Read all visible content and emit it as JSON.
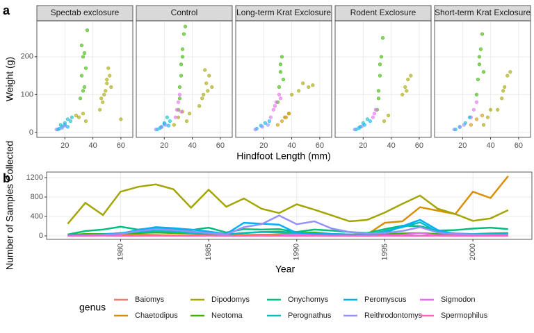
{
  "chart_data": [
    {
      "type": "scatter",
      "label": "a",
      "x_label": "Hindfoot Length (mm)",
      "y_label": "Weight (g)",
      "xlim": [
        0,
        68.5
      ],
      "ylim": [
        -13,
        295
      ],
      "xticks": [
        20,
        40,
        60
      ],
      "yticks": [
        0,
        100,
        200
      ],
      "grid": true,
      "facets": [
        {
          "title": "Spectab exclosure",
          "series": [
            {
              "color": "#A3A500",
              "x": [
                45,
                48,
                50,
                52,
                49,
                51,
                47,
                53,
                30,
                33,
                35,
                28,
                60,
                50,
                46
              ],
              "y": [
                60,
                100,
                130,
                150,
                110,
                170,
                80,
                120,
                40,
                50,
                30,
                45,
                35,
                140,
                90
              ]
            },
            {
              "color": "#39B600",
              "x": [
                31,
                32,
                33,
                34,
                32,
                35,
                36,
                33,
                34
              ],
              "y": [
                90,
                150,
                200,
                120,
                230,
                170,
                270,
                110,
                210
              ]
            },
            {
              "color": "#00BFC4",
              "x": [
                15,
                18,
                20,
                22,
                25,
                17,
                24
              ],
              "y": [
                8,
                15,
                25,
                35,
                40,
                20,
                30
              ]
            },
            {
              "color": "#00B0F6",
              "x": [
                16,
                20,
                22
              ],
              "y": [
                10,
                20,
                15
              ]
            },
            {
              "color": "#9590FF",
              "x": [
                18,
                20,
                14
              ],
              "y": [
                12,
                18,
                8
              ]
            }
          ]
        },
        {
          "title": "Control",
          "series": [
            {
              "color": "#A3A500",
              "x": [
                27,
                30,
                33,
                36,
                38,
                45,
                48,
                50,
                52,
                54,
                49,
                51,
                47
              ],
              "y": [
                20,
                40,
                55,
                30,
                50,
                70,
                100,
                130,
                150,
                120,
                165,
                110,
                90
              ]
            },
            {
              "color": "#39B600",
              "x": [
                30,
                31,
                32,
                33,
                34,
                35,
                32,
                31,
                33
              ],
              "y": [
                60,
                120,
                180,
                220,
                260,
                280,
                150,
                90,
                200
              ]
            },
            {
              "color": "#E76BF3",
              "x": [
                28,
                29,
                30,
                31,
                32
              ],
              "y": [
                40,
                60,
                80,
                100,
                55
              ]
            },
            {
              "color": "#00BFC4",
              "x": [
                15,
                18,
                20,
                22,
                24
              ],
              "y": [
                8,
                15,
                25,
                40,
                30
              ]
            },
            {
              "color": "#00B0F6",
              "x": [
                17,
                20,
                23
              ],
              "y": [
                12,
                22,
                18
              ]
            },
            {
              "color": "#9590FF",
              "x": [
                14,
                18,
                21
              ],
              "y": [
                8,
                14,
                20
              ]
            }
          ]
        },
        {
          "title": "Long-term Krat Exclosure",
          "series": [
            {
              "color": "#39B600",
              "x": [
                30,
                31,
                32,
                33,
                34,
                32
              ],
              "y": [
                80,
                120,
                160,
                200,
                140,
                180
              ]
            },
            {
              "color": "#E76BF3",
              "x": [
                25,
                27,
                29,
                31,
                32,
                28
              ],
              "y": [
                40,
                60,
                80,
                100,
                90,
                70
              ]
            },
            {
              "color": "#A3A500",
              "x": [
                40,
                45,
                48,
                52,
                55,
                35,
                38
              ],
              "y": [
                100,
                110,
                130,
                120,
                125,
                40,
                50
              ]
            },
            {
              "color": "#D89000",
              "x": [
                30,
                33,
                36,
                38
              ],
              "y": [
                20,
                30,
                40,
                50
              ]
            },
            {
              "color": "#00B0F6",
              "x": [
                15,
                18,
                21,
                24
              ],
              "y": [
                10,
                18,
                25,
                30
              ]
            },
            {
              "color": "#9590FF",
              "x": [
                14,
                19,
                23
              ],
              "y": [
                8,
                15,
                20
              ]
            }
          ]
        },
        {
          "title": "Rodent Exclosure",
          "series": [
            {
              "color": "#39B600",
              "x": [
                30,
                31,
                32,
                33,
                34,
                32,
                31
              ],
              "y": [
                60,
                110,
                150,
                200,
                250,
                180,
                90
              ]
            },
            {
              "color": "#A3A500",
              "x": [
                48,
                50,
                52,
                54,
                51,
                35,
                38
              ],
              "y": [
                100,
                120,
                140,
                150,
                110,
                30,
                45
              ]
            },
            {
              "color": "#E76BF3",
              "x": [
                27,
                28,
                29
              ],
              "y": [
                40,
                50,
                60
              ]
            },
            {
              "color": "#00BFC4",
              "x": [
                15,
                18,
                20,
                23
              ],
              "y": [
                8,
                15,
                25,
                35
              ]
            },
            {
              "color": "#00B0F6",
              "x": [
                17,
                21,
                25
              ],
              "y": [
                12,
                20,
                30
              ]
            },
            {
              "color": "#9590FF",
              "x": [
                14,
                19
              ],
              "y": [
                8,
                16
              ]
            }
          ]
        },
        {
          "title": "Short-term Krat Exclosure",
          "series": [
            {
              "color": "#39B600",
              "x": [
                30,
                31,
                32,
                33,
                34,
                35,
                32
              ],
              "y": [
                100,
                140,
                180,
                220,
                260,
                160,
                200
              ]
            },
            {
              "color": "#A3A500",
              "x": [
                45,
                48,
                50,
                52,
                54,
                49,
                35,
                38,
                40
              ],
              "y": [
                60,
                90,
                120,
                150,
                160,
                110,
                20,
                40,
                60
              ]
            },
            {
              "color": "#D89000",
              "x": [
                26,
                30,
                34
              ],
              "y": [
                20,
                35,
                45
              ]
            },
            {
              "color": "#E76BF3",
              "x": [
                26,
                28,
                30
              ],
              "y": [
                40,
                60,
                80
              ]
            },
            {
              "color": "#00BFC4",
              "x": [
                15,
                18,
                22,
                25
              ],
              "y": [
                8,
                15,
                25,
                40
              ]
            },
            {
              "color": "#9590FF",
              "x": [
                14,
                18,
                21
              ],
              "y": [
                8,
                14,
                20
              ]
            }
          ]
        }
      ]
    },
    {
      "type": "line",
      "label": "b",
      "x_label": "Year",
      "y_label": "Number of Samples Collected",
      "x": [
        1977,
        1978,
        1979,
        1980,
        1981,
        1982,
        1983,
        1984,
        1985,
        1986,
        1987,
        1988,
        1989,
        1990,
        1991,
        1992,
        1993,
        1994,
        1995,
        1996,
        1997,
        1998,
        1999,
        2000,
        2001,
        2002
      ],
      "xlim": [
        1975.8,
        2003.35
      ],
      "ylim": [
        -71,
        1314
      ],
      "xticks": [
        1980,
        1985,
        1990,
        1995,
        2000
      ],
      "yticks": [
        0,
        400,
        800,
        1200
      ],
      "grid": true,
      "legend_title": "genus",
      "legend": "bottom",
      "series": [
        {
          "name": "Baiomys",
          "color": "#F8766D",
          "values": [
            null,
            null,
            null,
            null,
            null,
            null,
            null,
            null,
            null,
            null,
            null,
            null,
            5,
            10,
            3,
            null,
            null,
            null,
            null,
            null,
            null,
            null,
            null,
            null,
            null,
            null
          ]
        },
        {
          "name": "Chaetodipus",
          "color": "#D89000",
          "values": [
            5,
            20,
            30,
            30,
            25,
            20,
            10,
            10,
            15,
            10,
            20,
            25,
            30,
            40,
            30,
            20,
            10,
            30,
            270,
            300,
            590,
            520,
            450,
            910,
            780,
            1230
          ]
        },
        {
          "name": "Dipodomys",
          "color": "#A3A500",
          "values": [
            250,
            680,
            430,
            910,
            1010,
            1060,
            960,
            580,
            950,
            600,
            770,
            560,
            470,
            650,
            540,
            420,
            300,
            330,
            480,
            660,
            830,
            560,
            450,
            310,
            360,
            530
          ]
        },
        {
          "name": "Neotoma",
          "color": "#39B600",
          "values": [
            20,
            40,
            40,
            50,
            60,
            70,
            60,
            50,
            40,
            30,
            60,
            80,
            90,
            60,
            70,
            40,
            30,
            30,
            40,
            50,
            60,
            40,
            30,
            40,
            50,
            60
          ]
        },
        {
          "name": "Onychomys",
          "color": "#00BF7D",
          "values": [
            30,
            100,
            130,
            190,
            130,
            170,
            150,
            120,
            170,
            70,
            140,
            130,
            140,
            80,
            130,
            110,
            80,
            60,
            140,
            210,
            200,
            110,
            120,
            150,
            170,
            140
          ]
        },
        {
          "name": "Perognathus",
          "color": "#00BFC4",
          "values": [
            10,
            15,
            30,
            60,
            80,
            100,
            90,
            60,
            50,
            30,
            60,
            80,
            70,
            60,
            40,
            30,
            20,
            20,
            100,
            180,
            280,
            80,
            50,
            40,
            40,
            50
          ]
        },
        {
          "name": "Peromyscus",
          "color": "#00B0F6",
          "values": [
            10,
            20,
            30,
            50,
            120,
            180,
            160,
            130,
            90,
            40,
            270,
            250,
            230,
            60,
            50,
            40,
            30,
            20,
            60,
            200,
            330,
            120,
            40,
            30,
            20,
            30
          ]
        },
        {
          "name": "Reithrodontomys",
          "color": "#9590FF",
          "values": [
            5,
            10,
            20,
            40,
            100,
            140,
            120,
            90,
            60,
            30,
            180,
            240,
            420,
            240,
            300,
            150,
            80,
            50,
            60,
            100,
            180,
            70,
            40,
            30,
            20,
            20
          ]
        },
        {
          "name": "Sigmodon",
          "color": "#E76BF3",
          "values": [
            null,
            null,
            null,
            null,
            null,
            null,
            null,
            null,
            null,
            null,
            null,
            null,
            20,
            30,
            10,
            5,
            5,
            3,
            10,
            20,
            60,
            10,
            5,
            3,
            5,
            10
          ]
        },
        {
          "name": "Spermophilus",
          "color": "#FF62BC",
          "values": [
            5,
            3,
            5,
            2,
            3,
            5,
            2,
            3,
            5,
            2,
            3,
            5,
            3,
            2,
            5,
            3,
            2,
            3,
            5,
            2,
            3,
            5,
            2,
            3,
            5,
            3
          ]
        }
      ]
    }
  ]
}
